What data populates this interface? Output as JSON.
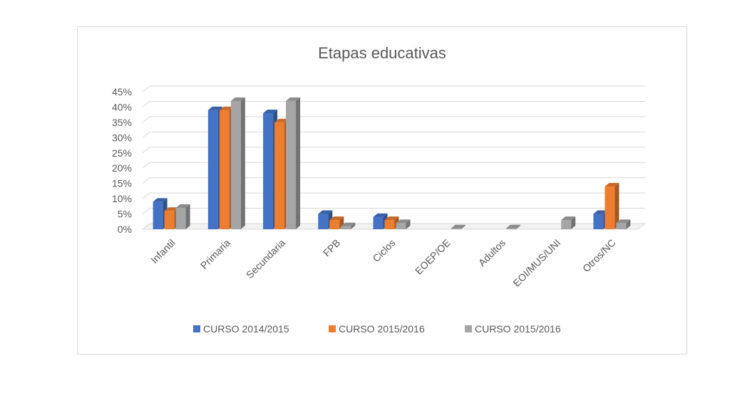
{
  "chart_data": {
    "type": "bar",
    "title": "Etapas educativas",
    "categories": [
      "Infantil",
      "Primaria",
      "Secundaria",
      "FPB",
      "Ciclos",
      "EOEP/OE",
      "Adultos",
      "EOI/MUS/UNI",
      "Otros/NC"
    ],
    "series": [
      {
        "name": "CURSO 2014/2015",
        "color": "#4472c4",
        "values": [
          9,
          39,
          38,
          5,
          4,
          0,
          0,
          0,
          5
        ]
      },
      {
        "name": "CURSO 2015/2016",
        "color": "#ed7d31",
        "values": [
          6,
          39,
          35,
          3,
          3,
          0,
          0,
          0,
          14
        ]
      },
      {
        "name": "CURSO 2015/2016",
        "color": "#a5a5a5",
        "values": [
          7,
          42,
          42,
          1,
          2,
          0.3,
          0.3,
          3,
          2
        ]
      }
    ],
    "ylim": [
      0,
      45
    ],
    "yticks": [
      "0%",
      "5%",
      "10%",
      "15%",
      "20%",
      "25%",
      "30%",
      "35%",
      "40%",
      "45%"
    ],
    "grid": true,
    "legend_position": "bottom"
  }
}
